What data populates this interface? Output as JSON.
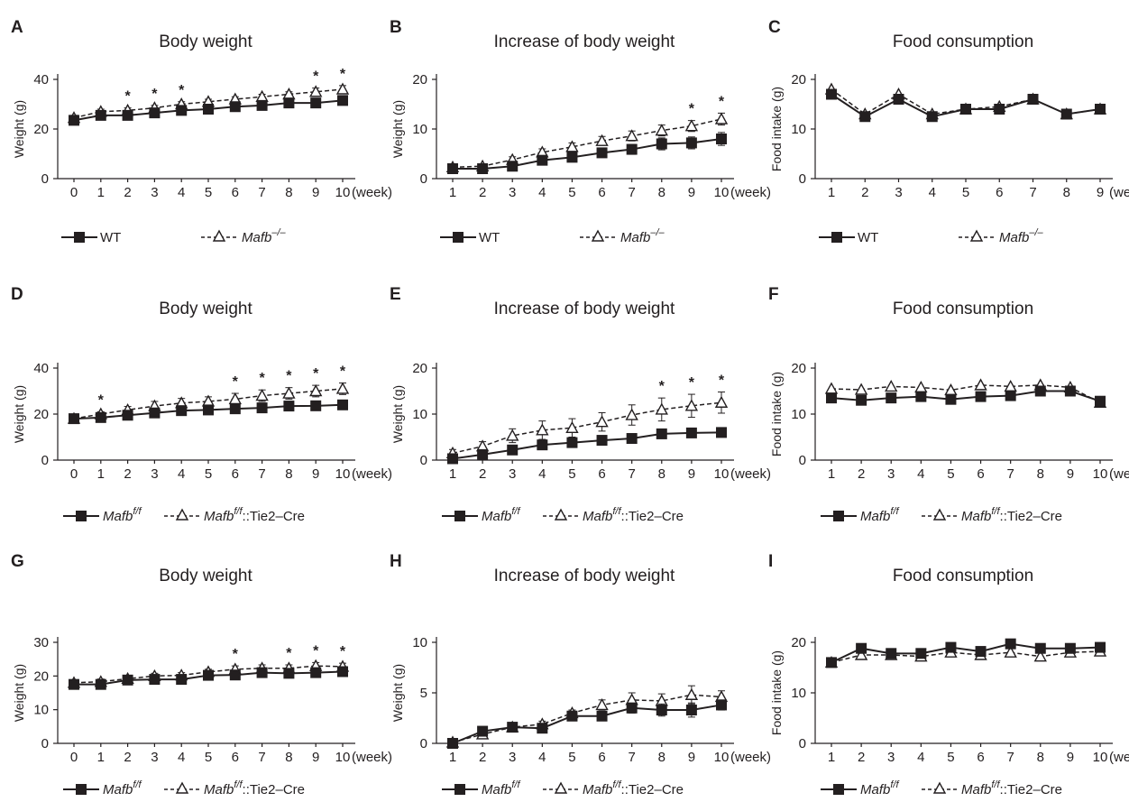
{
  "x_unit": "(week)",
  "legends": {
    "wt_ko": {
      "a": "WT",
      "b_main": "Mafb",
      "b_sup": "–/–",
      "b_suffix": ""
    },
    "flox_tie2": {
      "a_main": "Mafb",
      "a_sup": "f/f",
      "b_main": "Mafb",
      "b_sup": "f/f",
      "b_suffix": "::Tie2–Cre"
    }
  },
  "chart_data": [
    {
      "panel": "A",
      "type": "line",
      "title": "Body weight",
      "ylabel": "Weight (g)",
      "ylim": [
        0,
        40
      ],
      "yticks": [
        0,
        20,
        40
      ],
      "x": [
        0,
        1,
        2,
        3,
        4,
        5,
        6,
        7,
        8,
        9,
        10
      ],
      "series": [
        {
          "name": "WT",
          "values": [
            23.5,
            25.5,
            25.5,
            26.5,
            27.5,
            28,
            29,
            29.5,
            30.5,
            30.5,
            31.5
          ],
          "err": [
            1,
            1,
            1,
            1,
            1,
            1,
            1,
            1,
            1,
            1.5,
            1.5
          ]
        },
        {
          "name": "Mafb–/–",
          "values": [
            24.5,
            27,
            27.5,
            28.5,
            30,
            31,
            32,
            33,
            34,
            35,
            36
          ],
          "err": [
            1,
            1,
            1,
            1,
            1,
            1,
            1,
            1,
            1,
            1.5,
            1.5
          ]
        }
      ],
      "significant_x": [
        2,
        3,
        4,
        9,
        10
      ],
      "legend": "wt_ko"
    },
    {
      "panel": "B",
      "type": "line",
      "title": "Increase of body weight",
      "ylabel": "Weight (g)",
      "ylim": [
        0,
        20
      ],
      "yticks": [
        0,
        10,
        20
      ],
      "x": [
        1,
        2,
        3,
        4,
        5,
        6,
        7,
        8,
        9,
        10
      ],
      "series": [
        {
          "name": "WT",
          "values": [
            2,
            2,
            2.5,
            3.7,
            4.3,
            5.2,
            5.9,
            7,
            7.2,
            8
          ],
          "err": [
            0.5,
            0.5,
            0.5,
            0.7,
            0.8,
            0.9,
            1,
            1.2,
            1.2,
            1.3
          ]
        },
        {
          "name": "Mafb–/–",
          "values": [
            2.3,
            2.5,
            3.8,
            5.3,
            6.4,
            7.6,
            8.6,
            9.7,
            10.6,
            12
          ],
          "err": [
            0.5,
            0.5,
            0.6,
            0.7,
            0.8,
            0.9,
            1,
            1.1,
            1.1,
            1.2
          ]
        }
      ],
      "significant_x": [
        9,
        10
      ],
      "legend": "wt_ko"
    },
    {
      "panel": "C",
      "type": "line",
      "title": "Food consumption",
      "ylabel": "Food intake (g)",
      "ylim": [
        0,
        20
      ],
      "yticks": [
        0,
        10,
        20
      ],
      "x": [
        1,
        2,
        3,
        4,
        5,
        6,
        7,
        8,
        9
      ],
      "series": [
        {
          "name": "WT",
          "values": [
            17,
            12.5,
            16,
            12.5,
            14,
            14,
            16,
            13,
            14
          ],
          "err": [
            0,
            0,
            0,
            0,
            0,
            0,
            0,
            0,
            0
          ]
        },
        {
          "name": "Mafb–/–",
          "values": [
            18,
            13,
            17,
            13,
            14,
            14.5,
            16,
            13,
            14
          ],
          "err": [
            0,
            0,
            0,
            0,
            0,
            0,
            0,
            0,
            0
          ]
        }
      ],
      "significant_x": [],
      "legend": "wt_ko"
    },
    {
      "panel": "D",
      "type": "line",
      "title": "Body weight",
      "ylabel": "Weight (g)",
      "ylim": [
        0,
        40
      ],
      "yticks": [
        0,
        20,
        40
      ],
      "x": [
        0,
        1,
        2,
        3,
        4,
        5,
        6,
        7,
        8,
        9,
        10
      ],
      "series": [
        {
          "name": "Mafbf/f",
          "values": [
            18,
            18.5,
            19.5,
            20.5,
            21.5,
            21.8,
            22.3,
            22.7,
            23.5,
            23.6,
            24
          ],
          "err": [
            1,
            1,
            1,
            1,
            1,
            1,
            1,
            1,
            1,
            1,
            1
          ]
        },
        {
          "name": "Mafbf/f::Tie2–Cre",
          "values": [
            18,
            20,
            21.8,
            23.5,
            24.8,
            25.5,
            26.5,
            28,
            29,
            30,
            31
          ],
          "err": [
            1,
            1,
            1.5,
            2,
            2,
            2,
            2.5,
            2.5,
            2.5,
            2.5,
            2.5
          ]
        }
      ],
      "significant_x": [
        1,
        6,
        7,
        8,
        9,
        10
      ],
      "legend": "flox_tie2"
    },
    {
      "panel": "E",
      "type": "line",
      "title": "Increase of body weight",
      "ylabel": "Weight (g)",
      "ylim": [
        0,
        20
      ],
      "yticks": [
        0,
        10,
        20
      ],
      "x": [
        1,
        2,
        3,
        4,
        5,
        6,
        7,
        8,
        9,
        10
      ],
      "series": [
        {
          "name": "Mafbf/f",
          "values": [
            0.3,
            1.2,
            2.2,
            3.3,
            3.8,
            4.3,
            4.7,
            5.7,
            5.9,
            6
          ],
          "err": [
            0.3,
            0.4,
            0.5,
            0.5,
            0.5,
            0.5,
            0.5,
            0.5,
            0.5,
            0.5
          ]
        },
        {
          "name": "Mafbf/f::Tie2–Cre",
          "values": [
            1.5,
            3,
            5.3,
            6.5,
            7,
            8.3,
            9.8,
            11,
            11.8,
            12.5
          ],
          "err": [
            0.8,
            1,
            1.5,
            2,
            2,
            2,
            2.2,
            2.5,
            2.5,
            2.3
          ]
        }
      ],
      "significant_x": [
        8,
        9,
        10
      ],
      "legend": "flox_tie2"
    },
    {
      "panel": "F",
      "type": "line",
      "title": "Food consumption",
      "ylabel": "Food intake (g)",
      "ylim": [
        0,
        20
      ],
      "yticks": [
        0,
        10,
        20
      ],
      "x": [
        1,
        2,
        3,
        4,
        5,
        6,
        7,
        8,
        9,
        10
      ],
      "series": [
        {
          "name": "Mafbf/f",
          "values": [
            13.5,
            13,
            13.5,
            13.8,
            13.2,
            13.8,
            14,
            15,
            15,
            12.8
          ],
          "err": [
            0,
            0,
            0,
            0,
            0,
            0,
            0,
            0,
            0,
            0
          ]
        },
        {
          "name": "Mafbf/f::Tie2–Cre",
          "values": [
            15.5,
            15.3,
            16,
            15.8,
            15.2,
            16.3,
            16,
            16.3,
            15.8,
            12.5
          ],
          "err": [
            0,
            0,
            0,
            0,
            0,
            0,
            0,
            0,
            0,
            0
          ]
        }
      ],
      "significant_x": [],
      "legend": "flox_tie2"
    },
    {
      "panel": "G",
      "type": "line",
      "title": "Body weight",
      "ylabel": "Weight (g)",
      "ylim": [
        0,
        30
      ],
      "yticks": [
        0,
        10,
        20,
        30
      ],
      "x": [
        0,
        1,
        2,
        3,
        4,
        5,
        6,
        7,
        8,
        9,
        10
      ],
      "series": [
        {
          "name": "Mafbf/f",
          "values": [
            17.5,
            17.5,
            18.8,
            19,
            19,
            20.2,
            20.3,
            21,
            20.8,
            21,
            21.3
          ],
          "err": [
            0.8,
            0.8,
            0.8,
            0.8,
            0.8,
            0.8,
            0.8,
            0.8,
            0.8,
            0.8,
            0.8
          ]
        },
        {
          "name": "Mafbf/f::Tie2–Cre",
          "values": [
            18,
            18.3,
            19.2,
            20,
            20.2,
            21.2,
            22,
            22.3,
            22.3,
            23,
            22.8
          ],
          "err": [
            0.8,
            0.8,
            0.8,
            0.8,
            0.8,
            0.8,
            1,
            1,
            1,
            1,
            1
          ]
        }
      ],
      "significant_x": [
        6,
        8,
        9,
        10
      ],
      "legend": "flox_tie2"
    },
    {
      "panel": "H",
      "type": "line",
      "title": "Increase of body weight",
      "ylabel": "Weight (g)",
      "ylim": [
        0,
        10
      ],
      "yticks": [
        0,
        5,
        10
      ],
      "x": [
        1,
        2,
        3,
        4,
        5,
        6,
        7,
        8,
        9,
        10
      ],
      "series": [
        {
          "name": "Mafbf/f",
          "values": [
            0,
            1.2,
            1.6,
            1.5,
            2.7,
            2.7,
            3.5,
            3.3,
            3.3,
            3.8
          ],
          "err": [
            0.1,
            0.2,
            0.3,
            0.3,
            0.3,
            0.4,
            0.5,
            0.6,
            0.7,
            0.5
          ]
        },
        {
          "name": "Mafbf/f::Tie2–Cre",
          "values": [
            0.1,
            0.9,
            1.6,
            1.9,
            3,
            3.8,
            4.3,
            4.2,
            4.8,
            4.6
          ],
          "err": [
            0.1,
            0.2,
            0.3,
            0.3,
            0.3,
            0.5,
            0.7,
            0.7,
            0.9,
            0.6
          ]
        }
      ],
      "significant_x": [],
      "legend": "flox_tie2"
    },
    {
      "panel": "I",
      "type": "line",
      "title": "Food consumption",
      "ylabel": "Food intake (g)",
      "ylim": [
        0,
        20
      ],
      "yticks": [
        0,
        10,
        20
      ],
      "x": [
        1,
        2,
        3,
        4,
        5,
        6,
        7,
        8,
        9,
        10
      ],
      "series": [
        {
          "name": "Mafbf/f",
          "values": [
            16,
            18.8,
            17.8,
            17.8,
            19,
            18.2,
            19.7,
            18.8,
            18.8,
            19
          ],
          "err": [
            0,
            0,
            0,
            0,
            0,
            0,
            0,
            0,
            0,
            0
          ]
        },
        {
          "name": "Mafbf/f::Tie2–Cre",
          "values": [
            16,
            17.5,
            17.5,
            17.2,
            18,
            17.5,
            18,
            17.2,
            18,
            18.2
          ],
          "err": [
            0,
            0,
            0,
            0,
            0,
            0,
            0,
            0,
            0,
            0
          ]
        }
      ],
      "significant_x": [],
      "legend": "flox_tie2"
    }
  ]
}
